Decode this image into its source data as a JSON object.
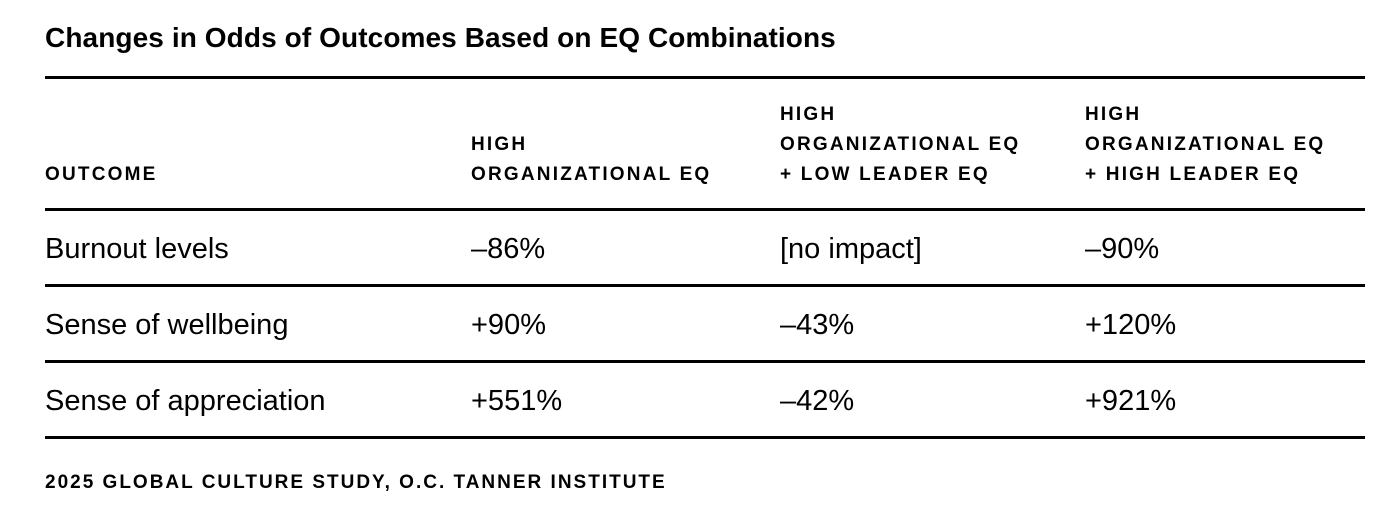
{
  "chart_data": {
    "type": "table",
    "title": "Changes in Odds of Outcomes Based on EQ Combinations",
    "columns": [
      {
        "lines": [
          "OUTCOME"
        ]
      },
      {
        "lines": [
          "HIGH",
          "ORGANIZATIONAL EQ"
        ]
      },
      {
        "lines": [
          "HIGH",
          "ORGANIZATIONAL EQ",
          "+ LOW LEADER EQ"
        ]
      },
      {
        "lines": [
          "HIGH",
          "ORGANIZATIONAL EQ",
          "+ HIGH LEADER EQ"
        ]
      }
    ],
    "rows": [
      [
        "Burnout levels",
        "–86%",
        "[no impact]",
        "–90%"
      ],
      [
        "Sense of wellbeing",
        "+90%",
        "–43%",
        "+120%"
      ],
      [
        "Sense of appreciation",
        "+551%",
        "–42%",
        "+921%"
      ]
    ],
    "values": [
      {
        "outcome": "Burnout levels",
        "high_org_eq": -86,
        "high_org_low_leader": null,
        "high_org_high_leader": -90
      },
      {
        "outcome": "Sense of wellbeing",
        "high_org_eq": 90,
        "high_org_low_leader": -43,
        "high_org_high_leader": 120
      },
      {
        "outcome": "Sense of appreciation",
        "high_org_eq": 551,
        "high_org_low_leader": -42,
        "high_org_high_leader": 921
      }
    ],
    "unit": "%",
    "source": "2025 GLOBAL CULTURE STUDY, O.C. TANNER INSTITUTE"
  }
}
